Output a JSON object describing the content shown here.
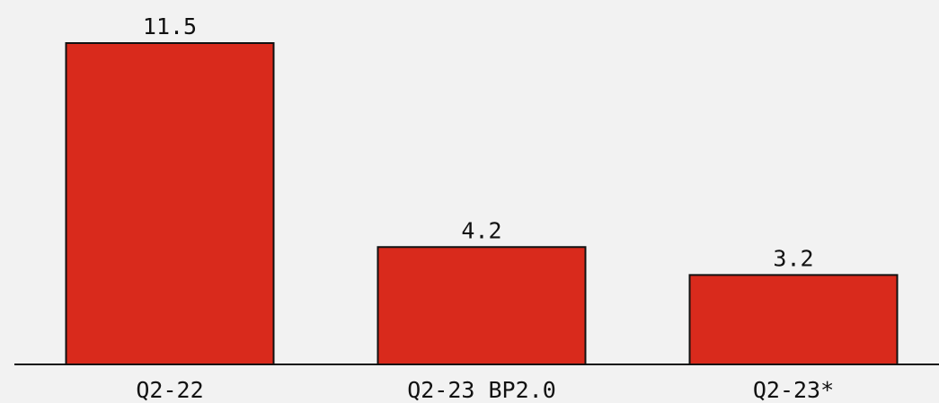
{
  "chart_data": {
    "type": "bar",
    "categories": [
      "Q2-22",
      "Q2-23 BP2.0",
      "Q2-23*"
    ],
    "values": [
      11.5,
      4.2,
      3.2
    ],
    "data_labels": [
      "11.5",
      "4.2",
      "3.2"
    ],
    "title": "",
    "xlabel": "",
    "ylabel": "",
    "ylim": [
      0,
      11.5
    ],
    "grid": false,
    "legend": "none",
    "bar_color": "#d92a1c",
    "bar_outline_color": "#111111",
    "background_color": "#f2f2f2"
  }
}
